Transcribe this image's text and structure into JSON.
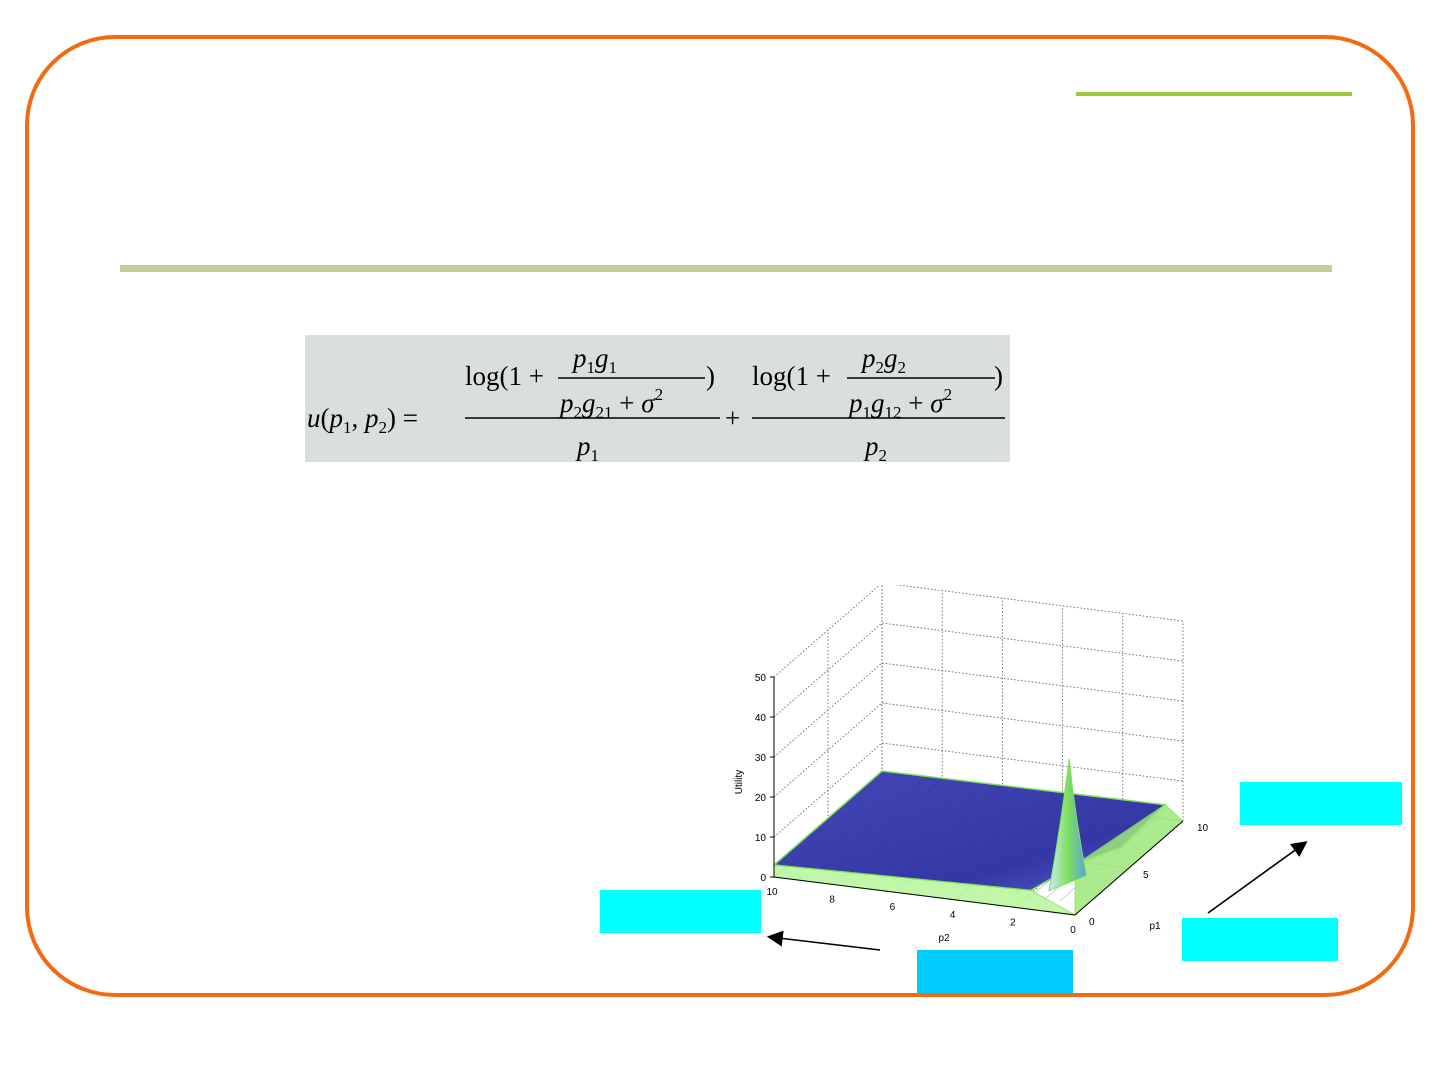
{
  "slide": {
    "frame_color": "#f26a12",
    "accent_color": "#9dc83a",
    "rule_color": "#c9cc97"
  },
  "equation": {
    "lhs": "u(p1, p2) =",
    "term1_numerator": "log(1 + p1g1 / (p2g21 + σ²))",
    "term1_denominator": "p1",
    "operator": "+",
    "term2_numerator": "log(1 + p2g2 / (p1g12 + σ²))",
    "term2_denominator": "p2"
  },
  "chart_data": {
    "type": "surface",
    "zlabel": "Utility",
    "xlabel": "p2",
    "ylabel": "p1",
    "x_ticks": [
      "10",
      "8",
      "6",
      "4",
      "2",
      "0"
    ],
    "y_ticks": [
      "0",
      "5",
      "10"
    ],
    "z_ticks": [
      "0",
      "10",
      "20",
      "30",
      "40",
      "50"
    ],
    "xlim": [
      0,
      10
    ],
    "ylim": [
      0,
      10
    ],
    "zlim": [
      0,
      50
    ],
    "surface_color": "#3b3fb0",
    "edge_color": "#7fe05a",
    "peak": {
      "p1": 0,
      "p2": 0,
      "utility": 38
    },
    "plateau_utility": 3,
    "grid": true
  },
  "callouts": [
    {
      "name": "left-callout",
      "color": "#00ffff"
    },
    {
      "name": "bottom-callout",
      "color": "#00ccff"
    },
    {
      "name": "right-lower-callout",
      "color": "#00ffff"
    },
    {
      "name": "right-upper-callout",
      "color": "#00ffff"
    }
  ]
}
